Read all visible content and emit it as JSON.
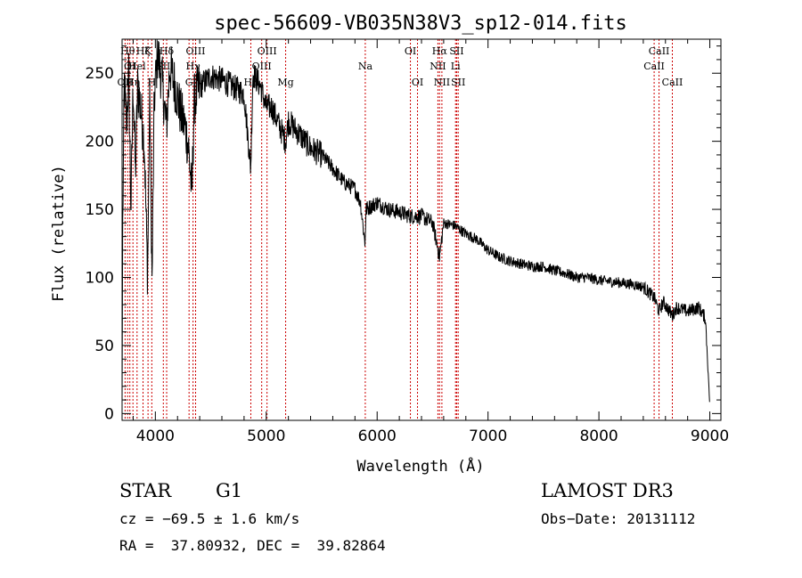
{
  "chart_data": {
    "type": "line",
    "title": "spec-56609-VB035N38V3_sp12-014.fits",
    "xlabel": "Wavelength (Å)",
    "ylabel": "Flux (relative)",
    "xlim": [
      3700,
      9100
    ],
    "ylim": [
      -5,
      275
    ],
    "x_ticks": [
      4000,
      5000,
      6000,
      7000,
      8000,
      9000
    ],
    "x_tick_labels": [
      "4000",
      "5000",
      "6000",
      "7000",
      "8000",
      "9000"
    ],
    "y_ticks": [
      0,
      50,
      100,
      150,
      200,
      250
    ],
    "y_tick_labels": [
      "0",
      "50",
      "100",
      "150",
      "200",
      "250"
    ],
    "grid": false,
    "line_color": "#000000",
    "marker_color": "#cc0000",
    "spectrum_anchors": [
      [
        3700,
        10
      ],
      [
        3705,
        130
      ],
      [
        3720,
        245
      ],
      [
        3740,
        210
      ],
      [
        3760,
        250
      ],
      [
        3780,
        150
      ],
      [
        3800,
        245
      ],
      [
        3820,
        175
      ],
      [
        3840,
        240
      ],
      [
        3860,
        230
      ],
      [
        3880,
        215
      ],
      [
        3900,
        200
      ],
      [
        3930,
        100
      ],
      [
        3950,
        235
      ],
      [
        3970,
        95
      ],
      [
        3990,
        230
      ],
      [
        4020,
        265
      ],
      [
        4060,
        245
      ],
      [
        4100,
        210
      ],
      [
        4130,
        255
      ],
      [
        4180,
        240
      ],
      [
        4230,
        220
      ],
      [
        4270,
        210
      ],
      [
        4300,
        195
      ],
      [
        4330,
        160
      ],
      [
        4350,
        230
      ],
      [
        4400,
        240
      ],
      [
        4500,
        248
      ],
      [
        4600,
        245
      ],
      [
        4700,
        240
      ],
      [
        4800,
        235
      ],
      [
        4860,
        180
      ],
      [
        4880,
        250
      ],
      [
        4950,
        240
      ],
      [
        5000,
        225
      ],
      [
        5050,
        225
      ],
      [
        5100,
        215
      ],
      [
        5175,
        200
      ],
      [
        5200,
        215
      ],
      [
        5300,
        205
      ],
      [
        5400,
        195
      ],
      [
        5500,
        190
      ],
      [
        5600,
        180
      ],
      [
        5700,
        170
      ],
      [
        5800,
        165
      ],
      [
        5850,
        155
      ],
      [
        5890,
        125
      ],
      [
        5900,
        150
      ],
      [
        6000,
        155
      ],
      [
        6100,
        150
      ],
      [
        6200,
        148
      ],
      [
        6300,
        145
      ],
      [
        6400,
        145
      ],
      [
        6500,
        140
      ],
      [
        6563,
        115
      ],
      [
        6600,
        140
      ],
      [
        6700,
        138
      ],
      [
        6800,
        132
      ],
      [
        6900,
        128
      ],
      [
        7000,
        120
      ],
      [
        7100,
        115
      ],
      [
        7200,
        112
      ],
      [
        7300,
        110
      ],
      [
        7400,
        108
      ],
      [
        7500,
        108
      ],
      [
        7600,
        105
      ],
      [
        7700,
        103
      ],
      [
        7800,
        100
      ],
      [
        7900,
        100
      ],
      [
        8000,
        98
      ],
      [
        8100,
        97
      ],
      [
        8200,
        96
      ],
      [
        8300,
        95
      ],
      [
        8400,
        93
      ],
      [
        8500,
        85
      ],
      [
        8542,
        75
      ],
      [
        8580,
        82
      ],
      [
        8662,
        72
      ],
      [
        8700,
        78
      ],
      [
        8800,
        75
      ],
      [
        8900,
        78
      ],
      [
        8960,
        70
      ],
      [
        8980,
        40
      ],
      [
        9000,
        5
      ]
    ],
    "noise_regions": [
      {
        "from": 3700,
        "to": 4400,
        "amplitude": 20
      },
      {
        "from": 4400,
        "to": 5500,
        "amplitude": 10
      },
      {
        "from": 5500,
        "to": 6600,
        "amplitude": 6
      },
      {
        "from": 6600,
        "to": 8400,
        "amplitude": 4
      },
      {
        "from": 8400,
        "to": 9000,
        "amplitude": 5
      }
    ],
    "line_markers": [
      {
        "wavelength": 3727,
        "label": "OII",
        "row": 3
      },
      {
        "wavelength": 3750,
        "label": "Hθ",
        "row": 1
      },
      {
        "wavelength": 3770,
        "label": "OI",
        "row": 2
      },
      {
        "wavelength": 3798,
        "label": "Hη",
        "row": 3
      },
      {
        "wavelength": 3835,
        "label": "Hel",
        "row": 2
      },
      {
        "wavelength": 3889,
        "label": "Hζ",
        "row": 1
      },
      {
        "wavelength": 3934,
        "label": "K",
        "row": 1
      },
      {
        "wavelength": 3968,
        "label": "H",
        "row": 3
      },
      {
        "wavelength": 4072,
        "label": "SII",
        "row": 2
      },
      {
        "wavelength": 4102,
        "label": "Hδ",
        "row": 1
      },
      {
        "wavelength": 4304,
        "label": "G",
        "row": 3
      },
      {
        "wavelength": 4340,
        "label": "Hγ",
        "row": 2
      },
      {
        "wavelength": 4363,
        "label": "OIII",
        "row": 1
      },
      {
        "wavelength": 4861,
        "label": "Hβ",
        "row": 3
      },
      {
        "wavelength": 4959,
        "label": "OIII",
        "row": 2
      },
      {
        "wavelength": 5007,
        "label": "OIII",
        "row": 1
      },
      {
        "wavelength": 5175,
        "label": "Mg",
        "row": 3
      },
      {
        "wavelength": 5893,
        "label": "Na",
        "row": 2
      },
      {
        "wavelength": 6300,
        "label": "OI",
        "row": 1
      },
      {
        "wavelength": 6364,
        "label": "OI",
        "row": 3
      },
      {
        "wavelength": 6548,
        "label": "NII",
        "row": 2
      },
      {
        "wavelength": 6563,
        "label": "Hα",
        "row": 1
      },
      {
        "wavelength": 6584,
        "label": "NII",
        "row": 3
      },
      {
        "wavelength": 6707,
        "label": "Li",
        "row": 2
      },
      {
        "wavelength": 6717,
        "label": "SII",
        "row": 1
      },
      {
        "wavelength": 6731,
        "label": "SII",
        "row": 3
      },
      {
        "wavelength": 8498,
        "label": "CaII",
        "row": 2
      },
      {
        "wavelength": 8542,
        "label": "CaII",
        "row": 1
      },
      {
        "wavelength": 8662,
        "label": "CaII",
        "row": 3
      }
    ]
  },
  "info": {
    "class": "STAR",
    "subclass": "G1",
    "survey": "LAMOST DR3",
    "velocity": "cz = −69.5 ± 1.6 km/s",
    "obs_date": "Obs−Date: 20131112",
    "coords": "RA =  37.80932, DEC =  39.82864"
  }
}
